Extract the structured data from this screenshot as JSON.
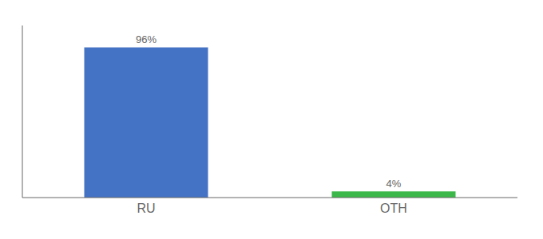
{
  "chart_data": {
    "type": "bar",
    "categories": [
      "RU",
      "OTH"
    ],
    "values": [
      96,
      4
    ],
    "value_labels": [
      "96%",
      "4%"
    ],
    "colors": [
      "#4472c4",
      "#3cb84a"
    ],
    "ylim": [
      0,
      110
    ],
    "data_labels": true,
    "tick_labels": "x",
    "grid": false
  }
}
